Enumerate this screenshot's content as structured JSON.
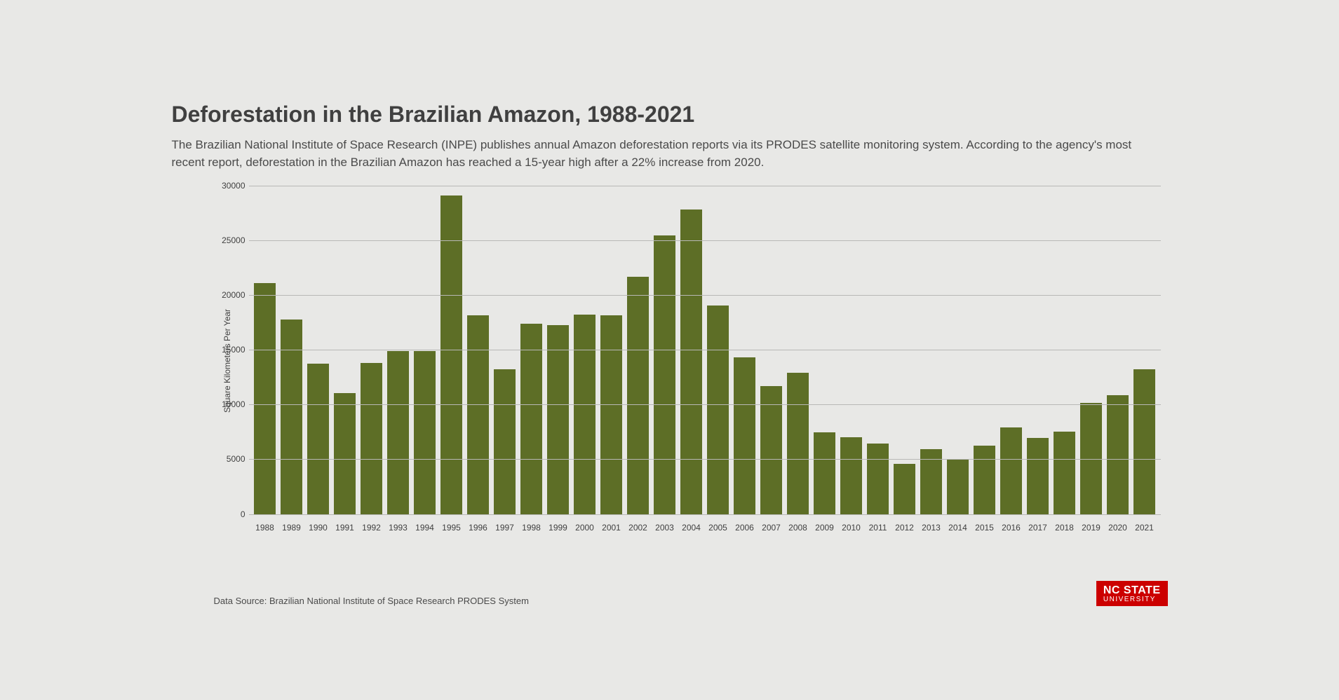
{
  "title": "Deforestation in the Brazilian Amazon, 1988-2021",
  "subtitle": "The Brazilian National Institute of Space Research (INPE) publishes annual Amazon deforestation reports via its PRODES satellite monitoring system. According to the agency's most recent report, deforestation in the Brazilian Amazon has reached a 15-year high after a 22% increase from 2020.",
  "source": "Data Source: Brazilian National Institute of Space Research PRODES System",
  "logo": {
    "top": "NC STATE",
    "bottom": "UNIVERSITY",
    "bg": "#cc0000",
    "fg": "#ffffff"
  },
  "chart": {
    "type": "bar",
    "ylabel": "Square Kilometers Per Year",
    "ylim": [
      0,
      30000
    ],
    "ytick_step": 5000,
    "yticks": [
      0,
      5000,
      10000,
      15000,
      20000,
      25000,
      30000
    ],
    "bar_color": "#5d6e26",
    "grid_color": "#b8b8b6",
    "axis_color": "#888888",
    "background_color": "#e8e8e6",
    "text_color": "#404040",
    "bar_width": 0.8,
    "categories": [
      "1988",
      "1989",
      "1990",
      "1991",
      "1992",
      "1993",
      "1994",
      "1995",
      "1996",
      "1997",
      "1998",
      "1999",
      "2000",
      "2001",
      "2002",
      "2003",
      "2004",
      "2005",
      "2006",
      "2007",
      "2008",
      "2009",
      "2010",
      "2011",
      "2012",
      "2013",
      "2014",
      "2015",
      "2016",
      "2017",
      "2018",
      "2019",
      "2020",
      "2021"
    ],
    "values": [
      21050,
      17770,
      13730,
      11030,
      13786,
      14896,
      14896,
      29059,
      18161,
      13227,
      17383,
      17259,
      18226,
      18165,
      21651,
      25396,
      27772,
      19014,
      14286,
      11651,
      12911,
      7464,
      7000,
      6418,
      4571,
      5891,
      5012,
      6207,
      7893,
      6947,
      7536,
      10129,
      10851,
      13235
    ],
    "title_fontsize": 32,
    "label_fontsize": 12,
    "tick_fontsize": 12
  }
}
